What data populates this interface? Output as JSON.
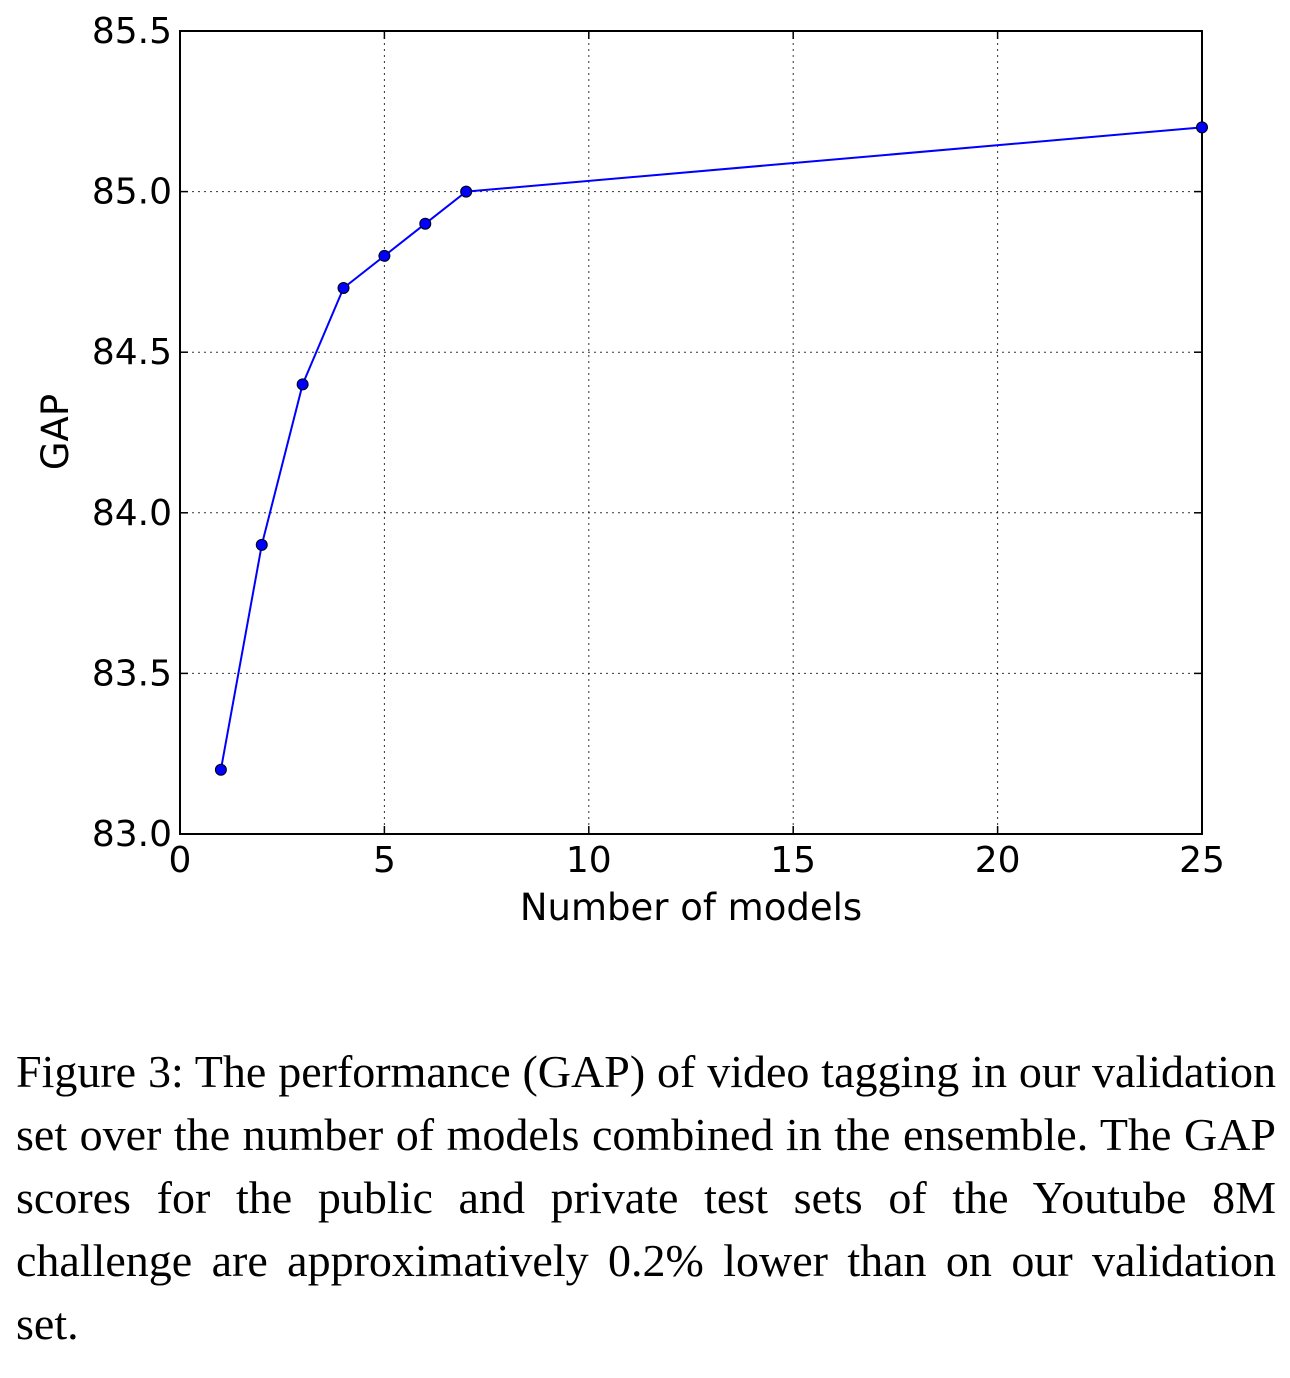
{
  "chart_data": {
    "type": "line",
    "title": "",
    "xlabel": "Number of models",
    "ylabel": "GAP",
    "xlim": [
      0,
      25
    ],
    "ylim": [
      83.0,
      85.5
    ],
    "xticks": [
      "0",
      "5",
      "10",
      "15",
      "20",
      "25"
    ],
    "yticks": [
      "83.0",
      "83.5",
      "84.0",
      "84.5",
      "85.0",
      "85.5"
    ],
    "grid": true,
    "grid_style": "dotted",
    "x": [
      1,
      2,
      3,
      4,
      5,
      6,
      7,
      25
    ],
    "series": [
      {
        "values": [
          83.2,
          83.9,
          84.4,
          84.7,
          84.8,
          84.9,
          85.0,
          85.2
        ],
        "color": "#0000ff",
        "marker": "circle"
      }
    ]
  },
  "caption": "Figure 3: The performance (GAP) of video tagging in our validation set over the number of models combined in the ensemble. The GAP scores for the public and private test sets of the Youtube 8M challenge are approximatively 0.2% lower than on our validation set."
}
